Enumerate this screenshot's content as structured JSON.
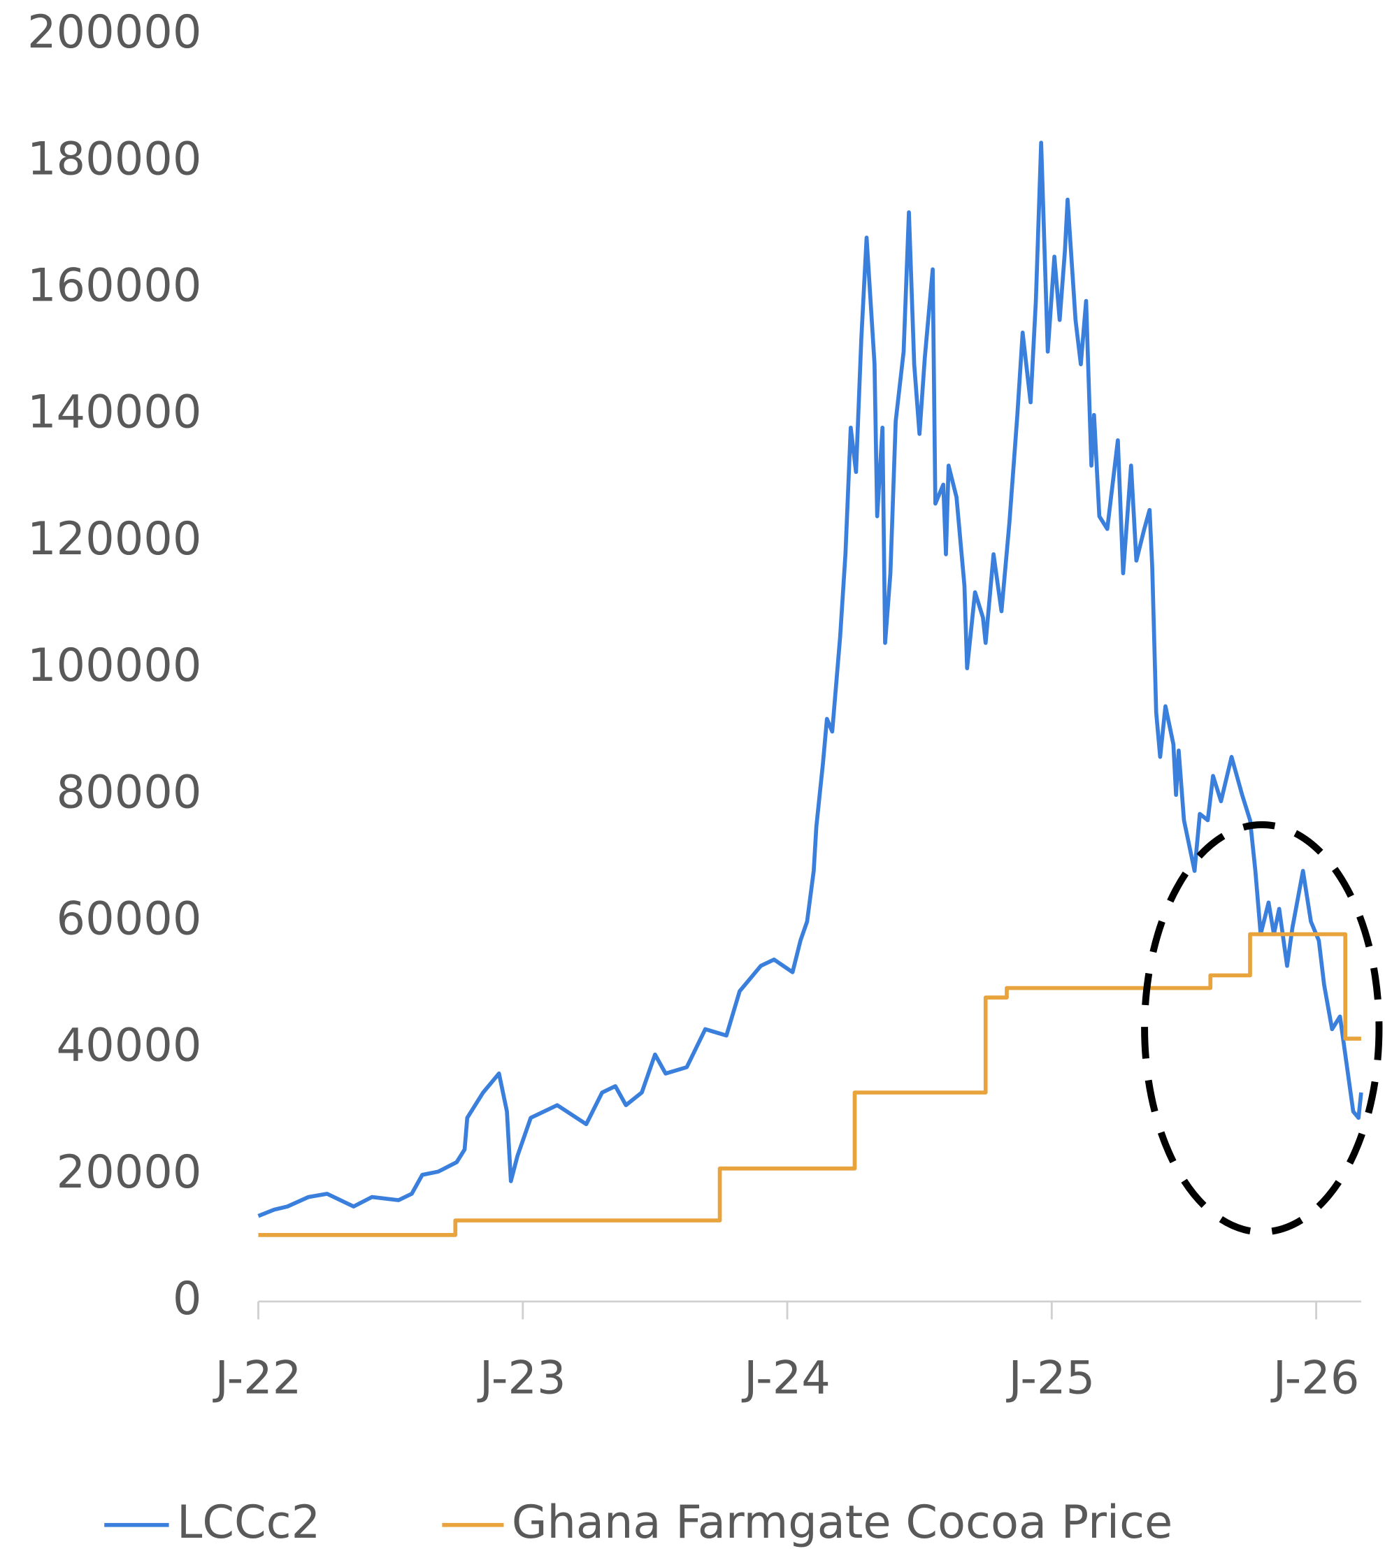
{
  "chart_data": {
    "type": "line",
    "xlim": [
      2022,
      2026.17
    ],
    "xticks": [
      {
        "value": 2022,
        "label": "J-22"
      },
      {
        "value": 2023,
        "label": "J-23"
      },
      {
        "value": 2024,
        "label": "J-24"
      },
      {
        "value": 2025,
        "label": "J-25"
      },
      {
        "value": 2026,
        "label": "J-26"
      }
    ],
    "ylim": [
      0,
      200000
    ],
    "yticks": [
      0,
      20000,
      40000,
      60000,
      80000,
      100000,
      120000,
      140000,
      160000,
      180000,
      200000
    ],
    "grid": false,
    "legend": "bottom",
    "series": [
      {
        "name": "LCCc2",
        "color": "#3a7fdc",
        "x": [
          2022,
          2022.06,
          2022.11,
          2022.19,
          2022.26,
          2022.36,
          2022.43,
          2022.53,
          2022.58,
          2022.62,
          2022.68,
          2022.75,
          2022.78,
          2022.79,
          2022.85,
          2022.91,
          2022.94,
          2022.955,
          2022.98,
          2023.03,
          2023.13,
          2023.24,
          2023.3,
          2023.35,
          2023.39,
          2023.45,
          2023.5,
          2023.54,
          2023.62,
          2023.69,
          2023.77,
          2023.82,
          2023.9,
          2023.95,
          2024.02,
          2024.05,
          2024.075,
          2024.1,
          2024.11,
          2024.135,
          2024.15,
          2024.17,
          2024.2,
          2024.22,
          2024.24,
          2024.26,
          2024.28,
          2024.3,
          2024.33,
          2024.34,
          2024.36,
          2024.37,
          2024.39,
          2024.41,
          2024.44,
          2024.46,
          2024.48,
          2024.5,
          2024.52,
          2024.55,
          2024.56,
          2024.59,
          2024.6,
          2024.61,
          2024.64,
          2024.67,
          2024.68,
          2024.71,
          2024.74,
          2024.75,
          2024.78,
          2024.81,
          2024.84,
          2024.87,
          2024.89,
          2024.92,
          2024.94,
          2024.96,
          2024.985,
          2025.01,
          2025.03,
          2025.05,
          2025.06,
          2025.09,
          2025.11,
          2025.13,
          2025.15,
          2025.16,
          2025.18,
          2025.21,
          2025.25,
          2025.27,
          2025.3,
          2025.32,
          2025.35,
          2025.37,
          2025.38,
          2025.395,
          2025.41,
          2025.43,
          2025.46,
          2025.47,
          2025.48,
          2025.5,
          2025.54,
          2025.56,
          2025.59,
          2025.61,
          2025.64,
          2025.68,
          2025.72,
          2025.75,
          2025.77,
          2025.79,
          2025.82,
          2025.84,
          2025.86,
          2025.89,
          2025.91,
          2025.95,
          2025.98,
          2026.01,
          2026.03,
          2026.06,
          2026.09,
          2026.12,
          2026.14,
          2026.16,
          2026.17
        ],
        "values": [
          13500,
          14500,
          15000,
          16500,
          17000,
          15000,
          16500,
          16000,
          17000,
          20000,
          20500,
          22000,
          24000,
          29000,
          33000,
          36000,
          30000,
          19000,
          23000,
          29000,
          31000,
          28000,
          33000,
          34000,
          31000,
          33000,
          39000,
          36000,
          37000,
          43000,
          42000,
          49000,
          53000,
          54000,
          52000,
          57000,
          60000,
          68000,
          75000,
          85000,
          92000,
          90000,
          105000,
          118000,
          138000,
          131000,
          152000,
          168000,
          148000,
          124000,
          138000,
          104000,
          115000,
          139000,
          150000,
          172000,
          148000,
          137000,
          149000,
          163000,
          126000,
          129000,
          118000,
          132000,
          127000,
          113000,
          100000,
          112000,
          108000,
          104000,
          118000,
          109000,
          123000,
          140000,
          153000,
          142000,
          158000,
          183000,
          150000,
          165000,
          155000,
          166000,
          174000,
          155000,
          148000,
          158000,
          132000,
          140000,
          124000,
          122000,
          136000,
          115000,
          132000,
          117000,
          122000,
          125000,
          116000,
          93000,
          86000,
          94000,
          88000,
          80000,
          87000,
          76000,
          68000,
          77000,
          76000,
          83000,
          79000,
          86000,
          80000,
          76000,
          68000,
          58000,
          63000,
          58000,
          62000,
          53000,
          59000,
          68000,
          60000,
          57000,
          50000,
          43000,
          45000,
          36000,
          30000,
          29000,
          33000
        ]
      },
      {
        "name": "Ghana Farmgate Cocoa Price",
        "color": "#e8a33d",
        "step": true,
        "x": [
          2022,
          2022.745,
          2023.745,
          2024.255,
          2024.75,
          2024.83,
          2025.6,
          2025.75,
          2026.11,
          2026.17
        ],
        "values": [
          10500,
          12800,
          21000,
          33000,
          48000,
          49500,
          51500,
          58000,
          41500,
          41500
        ]
      }
    ]
  }
}
